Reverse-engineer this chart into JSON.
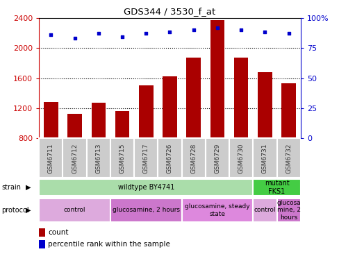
{
  "title": "GDS344 / 3530_f_at",
  "samples": [
    "GSM6711",
    "GSM6712",
    "GSM6713",
    "GSM6715",
    "GSM6717",
    "GSM6726",
    "GSM6728",
    "GSM6729",
    "GSM6730",
    "GSM6731",
    "GSM6732"
  ],
  "counts": [
    1280,
    1130,
    1270,
    1165,
    1500,
    1620,
    1870,
    2370,
    1870,
    1680,
    1530
  ],
  "percentile": [
    86,
    83,
    87,
    84,
    87,
    88,
    90,
    92,
    90,
    88,
    87
  ],
  "y_min": 800,
  "y_max": 2400,
  "y_ticks": [
    800,
    1200,
    1600,
    2000,
    2400
  ],
  "y_right_ticks": [
    0,
    25,
    50,
    75,
    100
  ],
  "bar_color": "#AA0000",
  "dot_color": "#0000CC",
  "strain_groups": [
    {
      "label": "wildtype BY4741",
      "start": 0,
      "end": 9,
      "color": "#AADDAA"
    },
    {
      "label": "mutant\nFKS1",
      "start": 9,
      "end": 11,
      "color": "#44CC44"
    }
  ],
  "protocol_groups": [
    {
      "label": "control",
      "start": 0,
      "end": 3,
      "color": "#DDAADD"
    },
    {
      "label": "glucosamine, 2 hours",
      "start": 3,
      "end": 6,
      "color": "#CC77CC"
    },
    {
      "label": "glucosamine, steady\nstate",
      "start": 6,
      "end": 9,
      "color": "#DD88DD"
    },
    {
      "label": "control",
      "start": 9,
      "end": 10,
      "color": "#DDAADD"
    },
    {
      "label": "glucosa\nmine, 2\nhours",
      "start": 10,
      "end": 11,
      "color": "#CC77CC"
    }
  ],
  "sample_box_color": "#CCCCCC",
  "left_axis_color": "#CC0000",
  "right_axis_color": "#0000CC",
  "x_label_color": "#333333",
  "legend_count_color": "#AA0000",
  "legend_dot_color": "#0000CC"
}
